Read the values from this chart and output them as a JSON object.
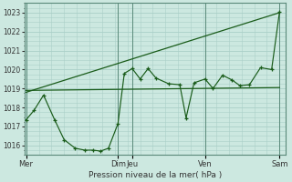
{
  "title": "Pression niveau de la mer( hPa )",
  "bg_color": "#cce8e0",
  "plot_bg_color": "#cce8e0",
  "grid_color": "#aacfc8",
  "line_color": "#1a5c1a",
  "ylim": [
    1015.5,
    1023.5
  ],
  "yticks": [
    1016,
    1017,
    1018,
    1019,
    1020,
    1021,
    1022,
    1023
  ],
  "day_labels": [
    "Mer",
    "Dim",
    "Jeu",
    "Ven",
    "Sam"
  ],
  "day_positions": [
    0.0,
    2.9,
    3.35,
    5.65,
    8.0
  ],
  "vline_positions": [
    0.0,
    2.9,
    3.35,
    5.65,
    8.0
  ],
  "trend_line1": {
    "x": [
      0.0,
      8.0
    ],
    "y": [
      1018.8,
      1023.0
    ]
  },
  "trend_line2": {
    "x": [
      0.0,
      8.0
    ],
    "y": [
      1018.9,
      1019.05
    ]
  },
  "zigzag_line": {
    "x": [
      0.0,
      0.25,
      0.55,
      0.9,
      1.2,
      1.55,
      1.85,
      2.1,
      2.35,
      2.6,
      2.9,
      3.1,
      3.35,
      3.6,
      3.85,
      4.1,
      4.5,
      4.85,
      5.05,
      5.3,
      5.65,
      5.9,
      6.2,
      6.5,
      6.75,
      7.05,
      7.4,
      7.75,
      8.0
    ],
    "y": [
      1017.35,
      1017.85,
      1018.65,
      1017.35,
      1016.3,
      1015.85,
      1015.75,
      1015.75,
      1015.7,
      1015.85,
      1017.15,
      1019.8,
      1020.05,
      1019.5,
      1020.05,
      1019.55,
      1019.25,
      1019.2,
      1017.45,
      1019.3,
      1019.5,
      1019.0,
      1019.7,
      1019.45,
      1019.15,
      1019.2,
      1020.1,
      1020.0,
      1023.05
    ]
  }
}
